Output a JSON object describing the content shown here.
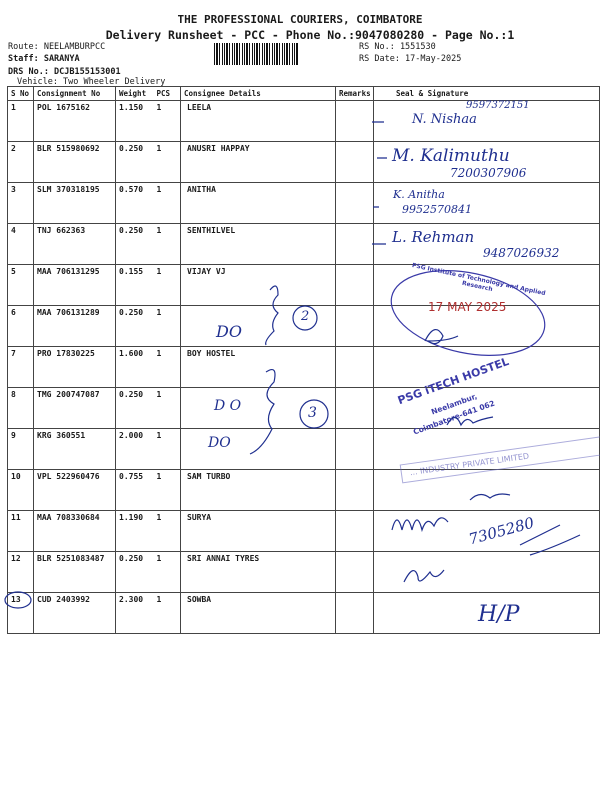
{
  "header": {
    "company": "THE PROFESSIONAL COURIERS, COIMBATORE",
    "subtitle": "Delivery Runsheet - PCC - Phone No.:9047080280 - Page No.:1",
    "route": "Route: NEELAMBURPCC",
    "staff": "Staff: SARANYA",
    "drs": "DRS No.: DCJB155153001",
    "vehicle": "Vehicle: Two Wheeler Delivery",
    "rs_no": "RS No.: 1551530",
    "rs_date": "RS Date: 17-May-2025"
  },
  "table": {
    "columns": [
      "S No",
      "Consignment No",
      "Weight",
      "PCS",
      "Consignee Details",
      "Remarks",
      "Seal & Signature"
    ],
    "rows": [
      {
        "sno": "1",
        "cn": "POL 1675162",
        "wt": "1.150",
        "pcs": "1",
        "consignee": "LEELA"
      },
      {
        "sno": "2",
        "cn": "BLR 515980692",
        "wt": "0.250",
        "pcs": "1",
        "consignee": "ANUSRI HAPPAY"
      },
      {
        "sno": "3",
        "cn": "SLM 370318195",
        "wt": "0.570",
        "pcs": "1",
        "consignee": "ANITHA"
      },
      {
        "sno": "4",
        "cn": "TNJ 662363",
        "wt": "0.250",
        "pcs": "1",
        "consignee": "SENTHILVEL"
      },
      {
        "sno": "5",
        "cn": "MAA 706131295",
        "wt": "0.155",
        "pcs": "1",
        "consignee": "VIJAY VJ"
      },
      {
        "sno": "6",
        "cn": "MAA 706131289",
        "wt": "0.250",
        "pcs": "1",
        "consignee": ""
      },
      {
        "sno": "7",
        "cn": "PRO 17830225",
        "wt": "1.600",
        "pcs": "1",
        "consignee": "BOY HOSTEL"
      },
      {
        "sno": "8",
        "cn": "TMG 200747087",
        "wt": "0.250",
        "pcs": "1",
        "consignee": ""
      },
      {
        "sno": "9",
        "cn": "KRG 360551",
        "wt": "2.000",
        "pcs": "1",
        "consignee": ""
      },
      {
        "sno": "10",
        "cn": "VPL 522960476",
        "wt": "0.755",
        "pcs": "1",
        "consignee": "SAM TURBO"
      },
      {
        "sno": "11",
        "cn": "MAA 708330684",
        "wt": "1.190",
        "pcs": "1",
        "consignee": "SURYA"
      },
      {
        "sno": "12",
        "cn": "BLR 5251083487",
        "wt": "0.250",
        "pcs": "1",
        "consignee": "SRI ANNAI TYRES"
      },
      {
        "sno": "13",
        "cn": "CUD 2403992",
        "wt": "2.300",
        "pcs": "1",
        "consignee": "SOWBA"
      }
    ]
  },
  "handwriting": {
    "sig1": "N. Nishaa",
    "phone1": "9597372151",
    "sig2": "M. Kalimuthu",
    "phone2": "7200307906",
    "sig3": "K. Anitha",
    "phone3": "9952570841",
    "sig4": "L. Rehman",
    "phone4": "9487026932",
    "do1": "DO",
    "circle2": "2",
    "do2": "D O",
    "do3": "DO",
    "circle3": "3",
    "phone5": "7305280",
    "hp": "H/P"
  },
  "stamps": {
    "college_ring": "PSG Institute of Technology and Applied Research",
    "college_date": "17 MAY 2025",
    "hostel_name": "PSG iTECH HOSTEL",
    "hostel_addr1": "Neelambur,",
    "hostel_addr2": "Coimbatore-641 062",
    "company_stamp": "... INDUSTRY PRIVATE LIMITED"
  },
  "colors": {
    "ink": "#1f2f8f",
    "stamp": "#3a3aa8",
    "date_stamp": "#b03030"
  }
}
